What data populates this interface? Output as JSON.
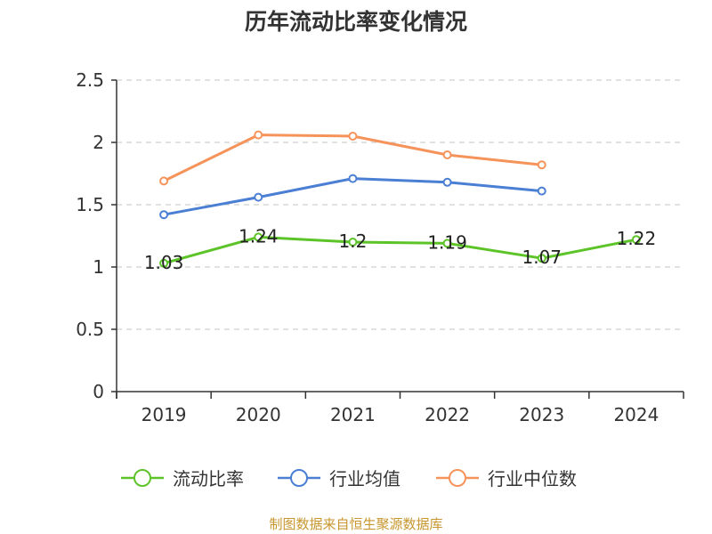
{
  "chart_data": {
    "type": "line",
    "title": "历年流动比率变化情况",
    "categories": [
      "2019",
      "2020",
      "2021",
      "2022",
      "2023",
      "2024"
    ],
    "ylim": [
      0,
      2.5
    ],
    "yticks": [
      "0",
      "0.5",
      "1",
      "1.5",
      "2",
      "2.5"
    ],
    "grid": true,
    "legend_position": "bottom",
    "series": [
      {
        "name": "流动比率",
        "color": "#5cc428",
        "values": [
          1.03,
          1.24,
          1.2,
          1.19,
          1.07,
          1.22
        ],
        "labels": [
          "1.03",
          "1.24",
          "1.2",
          "1.19",
          "1.07",
          "1.22"
        ]
      },
      {
        "name": "行业均值",
        "color": "#4a7fd4",
        "values": [
          1.42,
          1.56,
          1.71,
          1.68,
          1.61,
          null
        ]
      },
      {
        "name": "行业中位数",
        "color": "#f5935a",
        "values": [
          1.69,
          2.06,
          2.05,
          1.9,
          1.82,
          null
        ]
      }
    ]
  },
  "source": "制图数据来自恒生聚源数据库"
}
